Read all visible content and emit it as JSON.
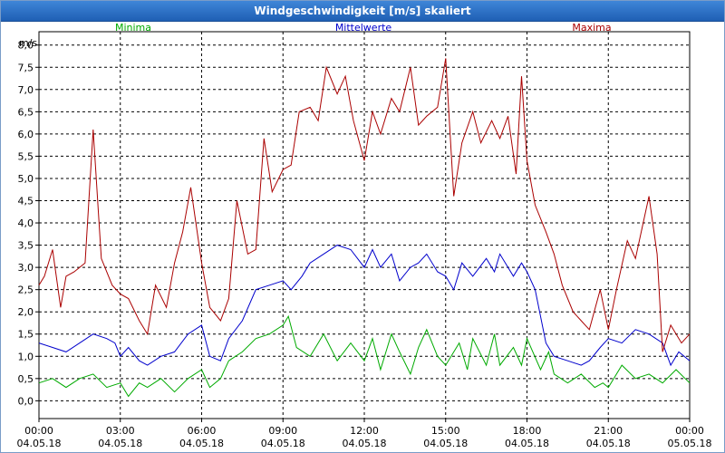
{
  "window": {
    "title": "Windgeschwindigkeit [m/s] skaliert"
  },
  "chart_data": {
    "type": "line",
    "title": "Windgeschwindigkeit [m/s] skaliert",
    "ylabel": "m/s",
    "ylim": [
      -0.4,
      8.3
    ],
    "yticks": [
      0.0,
      0.5,
      1.0,
      1.5,
      2.0,
      2.5,
      3.0,
      3.5,
      4.0,
      4.5,
      5.0,
      5.5,
      6.0,
      6.5,
      7.0,
      7.5,
      8.0
    ],
    "ytick_labels": [
      "0,0",
      "0,5",
      "1,0",
      "1,5",
      "2,0",
      "2,5",
      "3,0",
      "3,5",
      "4,0",
      "4,5",
      "5,0",
      "5,5",
      "6,0",
      "6,5",
      "7,0",
      "7,5",
      "8,0"
    ],
    "xlim": [
      0,
      24
    ],
    "xticks": [
      0,
      3,
      6,
      9,
      12,
      15,
      18,
      21,
      24
    ],
    "xtick_labels": [
      {
        "time": "00:00",
        "date": "04.05.18"
      },
      {
        "time": "03:00",
        "date": "04.05.18"
      },
      {
        "time": "06:00",
        "date": "04.05.18"
      },
      {
        "time": "09:00",
        "date": "04.05.18"
      },
      {
        "time": "12:00",
        "date": "04.05.18"
      },
      {
        "time": "15:00",
        "date": "04.05.18"
      },
      {
        "time": "18:00",
        "date": "04.05.18"
      },
      {
        "time": "21:00",
        "date": "04.05.18"
      },
      {
        "time": "00:00",
        "date": "05.05.18"
      }
    ],
    "grid": true,
    "legend_position": "top",
    "series": [
      {
        "name": "Minima",
        "color": "#00aa00",
        "points": [
          [
            0,
            0.4
          ],
          [
            0.5,
            0.5
          ],
          [
            1,
            0.3
          ],
          [
            1.5,
            0.5
          ],
          [
            2,
            0.6
          ],
          [
            2.5,
            0.3
          ],
          [
            3,
            0.4
          ],
          [
            3.3,
            0.1
          ],
          [
            3.7,
            0.4
          ],
          [
            4,
            0.3
          ],
          [
            4.5,
            0.5
          ],
          [
            5,
            0.2
          ],
          [
            5.5,
            0.5
          ],
          [
            6,
            0.7
          ],
          [
            6.3,
            0.3
          ],
          [
            6.7,
            0.5
          ],
          [
            7,
            0.9
          ],
          [
            7.5,
            1.1
          ],
          [
            8,
            1.4
          ],
          [
            8.5,
            1.5
          ],
          [
            9,
            1.7
          ],
          [
            9.2,
            1.9
          ],
          [
            9.5,
            1.2
          ],
          [
            10,
            1.0
          ],
          [
            10.5,
            1.5
          ],
          [
            11,
            0.9
          ],
          [
            11.5,
            1.3
          ],
          [
            12,
            0.9
          ],
          [
            12.3,
            1.4
          ],
          [
            12.6,
            0.7
          ],
          [
            13,
            1.5
          ],
          [
            13.3,
            1.1
          ],
          [
            13.7,
            0.6
          ],
          [
            14,
            1.2
          ],
          [
            14.3,
            1.6
          ],
          [
            14.7,
            1.0
          ],
          [
            15,
            0.8
          ],
          [
            15.5,
            1.3
          ],
          [
            15.8,
            0.7
          ],
          [
            16,
            1.4
          ],
          [
            16.5,
            0.8
          ],
          [
            16.8,
            1.5
          ],
          [
            17,
            0.8
          ],
          [
            17.5,
            1.2
          ],
          [
            17.8,
            0.8
          ],
          [
            18,
            1.4
          ],
          [
            18.5,
            0.7
          ],
          [
            18.8,
            1.1
          ],
          [
            19,
            0.6
          ],
          [
            19.5,
            0.4
          ],
          [
            20,
            0.6
          ],
          [
            20.5,
            0.3
          ],
          [
            20.8,
            0.4
          ],
          [
            21,
            0.3
          ],
          [
            21.5,
            0.8
          ],
          [
            22,
            0.5
          ],
          [
            22.5,
            0.6
          ],
          [
            23,
            0.4
          ],
          [
            23.5,
            0.7
          ],
          [
            24,
            0.4
          ]
        ]
      },
      {
        "name": "Mittelwerte",
        "color": "#0000cc",
        "points": [
          [
            0,
            1.3
          ],
          [
            0.5,
            1.2
          ],
          [
            1,
            1.1
          ],
          [
            1.5,
            1.3
          ],
          [
            2,
            1.5
          ],
          [
            2.5,
            1.4
          ],
          [
            2.8,
            1.3
          ],
          [
            3,
            1.0
          ],
          [
            3.3,
            1.2
          ],
          [
            3.7,
            0.9
          ],
          [
            4,
            0.8
          ],
          [
            4.5,
            1.0
          ],
          [
            5,
            1.1
          ],
          [
            5.5,
            1.5
          ],
          [
            6,
            1.7
          ],
          [
            6.3,
            1.0
          ],
          [
            6.7,
            0.9
          ],
          [
            7,
            1.4
          ],
          [
            7.5,
            1.8
          ],
          [
            8,
            2.5
          ],
          [
            8.5,
            2.6
          ],
          [
            9,
            2.7
          ],
          [
            9.3,
            2.5
          ],
          [
            9.7,
            2.8
          ],
          [
            10,
            3.1
          ],
          [
            10.5,
            3.3
          ],
          [
            11,
            3.5
          ],
          [
            11.5,
            3.4
          ],
          [
            12,
            3.0
          ],
          [
            12.3,
            3.4
          ],
          [
            12.6,
            3.0
          ],
          [
            13,
            3.3
          ],
          [
            13.3,
            2.7
          ],
          [
            13.7,
            3.0
          ],
          [
            14,
            3.1
          ],
          [
            14.3,
            3.3
          ],
          [
            14.7,
            2.9
          ],
          [
            15,
            2.8
          ],
          [
            15.3,
            2.5
          ],
          [
            15.6,
            3.1
          ],
          [
            16,
            2.8
          ],
          [
            16.5,
            3.2
          ],
          [
            16.8,
            2.9
          ],
          [
            17,
            3.3
          ],
          [
            17.5,
            2.8
          ],
          [
            17.8,
            3.1
          ],
          [
            18,
            2.9
          ],
          [
            18.3,
            2.5
          ],
          [
            18.7,
            1.3
          ],
          [
            19,
            1.0
          ],
          [
            19.5,
            0.9
          ],
          [
            20,
            0.8
          ],
          [
            20.3,
            0.9
          ],
          [
            20.7,
            1.2
          ],
          [
            21,
            1.4
          ],
          [
            21.5,
            1.3
          ],
          [
            22,
            1.6
          ],
          [
            22.5,
            1.5
          ],
          [
            23,
            1.3
          ],
          [
            23.3,
            0.8
          ],
          [
            23.6,
            1.1
          ],
          [
            24,
            0.9
          ]
        ]
      },
      {
        "name": "Maxima",
        "color": "#aa0000",
        "points": [
          [
            0,
            2.6
          ],
          [
            0.2,
            2.8
          ],
          [
            0.5,
            3.4
          ],
          [
            0.8,
            2.1
          ],
          [
            1,
            2.8
          ],
          [
            1.3,
            2.9
          ],
          [
            1.7,
            3.1
          ],
          [
            2,
            6.1
          ],
          [
            2.3,
            3.2
          ],
          [
            2.7,
            2.6
          ],
          [
            3,
            2.4
          ],
          [
            3.3,
            2.3
          ],
          [
            3.7,
            1.8
          ],
          [
            4,
            1.5
          ],
          [
            4.3,
            2.6
          ],
          [
            4.7,
            2.1
          ],
          [
            5,
            3.1
          ],
          [
            5.3,
            3.8
          ],
          [
            5.6,
            4.8
          ],
          [
            6,
            3.1
          ],
          [
            6.3,
            2.1
          ],
          [
            6.7,
            1.8
          ],
          [
            7,
            2.3
          ],
          [
            7.3,
            4.5
          ],
          [
            7.7,
            3.3
          ],
          [
            8,
            3.4
          ],
          [
            8.3,
            5.9
          ],
          [
            8.6,
            4.7
          ],
          [
            9,
            5.2
          ],
          [
            9.3,
            5.3
          ],
          [
            9.6,
            6.5
          ],
          [
            10,
            6.6
          ],
          [
            10.3,
            6.3
          ],
          [
            10.6,
            7.5
          ],
          [
            11,
            6.9
          ],
          [
            11.3,
            7.3
          ],
          [
            11.6,
            6.3
          ],
          [
            12,
            5.4
          ],
          [
            12.3,
            6.5
          ],
          [
            12.6,
            6.0
          ],
          [
            13,
            6.8
          ],
          [
            13.3,
            6.5
          ],
          [
            13.7,
            7.5
          ],
          [
            14,
            6.2
          ],
          [
            14.3,
            6.4
          ],
          [
            14.7,
            6.6
          ],
          [
            15,
            7.7
          ],
          [
            15.3,
            4.6
          ],
          [
            15.6,
            5.8
          ],
          [
            16,
            6.5
          ],
          [
            16.3,
            5.8
          ],
          [
            16.7,
            6.3
          ],
          [
            17,
            5.9
          ],
          [
            17.3,
            6.4
          ],
          [
            17.6,
            5.1
          ],
          [
            17.8,
            7.3
          ],
          [
            18,
            5.4
          ],
          [
            18.3,
            4.4
          ],
          [
            18.7,
            3.8
          ],
          [
            19,
            3.3
          ],
          [
            19.3,
            2.6
          ],
          [
            19.7,
            2.0
          ],
          [
            20,
            1.8
          ],
          [
            20.3,
            1.6
          ],
          [
            20.7,
            2.5
          ],
          [
            21,
            1.6
          ],
          [
            21.3,
            2.5
          ],
          [
            21.7,
            3.6
          ],
          [
            22,
            3.2
          ],
          [
            22.5,
            4.6
          ],
          [
            22.8,
            3.3
          ],
          [
            23,
            1.1
          ],
          [
            23.3,
            1.7
          ],
          [
            23.7,
            1.3
          ],
          [
            24,
            1.5
          ]
        ]
      }
    ]
  }
}
